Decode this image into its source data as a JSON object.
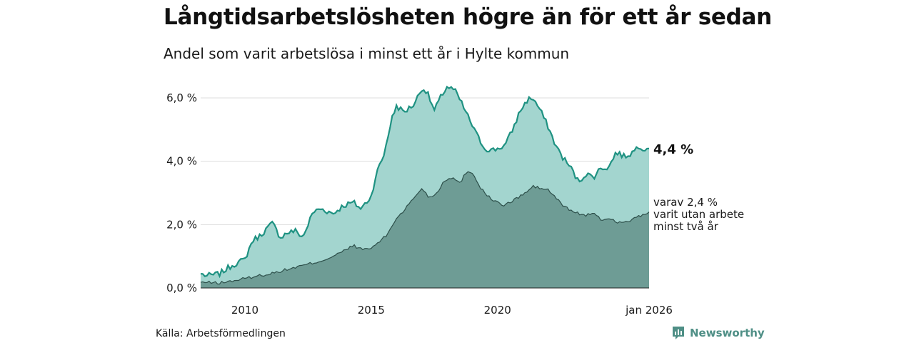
{
  "title": "Långtidsarbetslösheten högre än för ett år sedan",
  "subtitle": "Andel som varit arbetslösa i minst ett år i Hylte kommun",
  "source": "Källa: Arbetsförmedlingen",
  "brand": "Newsworthy",
  "colors": {
    "total_line": "#1f9282",
    "total_fill": "#a3d5cf",
    "sub_fill": "#6e9c95",
    "sub_line": "#2d4f4a",
    "grid": "#dddddd",
    "brand": "#4f8f86"
  },
  "chart_data": {
    "type": "area",
    "x_start": 2008.25,
    "x_end": 2026.0,
    "x_step": "month",
    "xlim": [
      2008.25,
      2026.0
    ],
    "ylim": [
      0,
      6.2
    ],
    "y_ticks": [
      0,
      2,
      4,
      6
    ],
    "y_tick_labels": [
      "0,0 %",
      "2,0 %",
      "4,0 %",
      "6,0 %"
    ],
    "x_ticks": [
      2010,
      2015,
      2020,
      2026
    ],
    "x_tick_labels": [
      "2010",
      "2015",
      "2020",
      "jan 2026"
    ],
    "grid": true,
    "series": [
      {
        "name": "Arbetslösa minst ett år",
        "label": "4,4 %",
        "keypoints": [
          [
            2008.25,
            0.45
          ],
          [
            2008.5,
            0.38
          ],
          [
            2009.0,
            0.45
          ],
          [
            2009.5,
            0.72
          ],
          [
            2010.0,
            0.9
          ],
          [
            2010.3,
            1.5
          ],
          [
            2010.6,
            1.65
          ],
          [
            2010.9,
            1.9
          ],
          [
            2011.1,
            2.05
          ],
          [
            2011.4,
            1.6
          ],
          [
            2011.7,
            1.75
          ],
          [
            2012.0,
            1.8
          ],
          [
            2012.3,
            1.6
          ],
          [
            2012.7,
            2.4
          ],
          [
            2013.0,
            2.5
          ],
          [
            2013.5,
            2.35
          ],
          [
            2013.9,
            2.6
          ],
          [
            2014.3,
            2.7
          ],
          [
            2014.6,
            2.5
          ],
          [
            2015.0,
            2.9
          ],
          [
            2015.2,
            3.6
          ],
          [
            2015.5,
            4.2
          ],
          [
            2015.8,
            5.3
          ],
          [
            2016.0,
            5.75
          ],
          [
            2016.3,
            5.55
          ],
          [
            2016.7,
            5.8
          ],
          [
            2017.0,
            6.3
          ],
          [
            2017.2,
            6.2
          ],
          [
            2017.5,
            5.6
          ],
          [
            2017.8,
            6.1
          ],
          [
            2018.0,
            6.35
          ],
          [
            2018.3,
            6.25
          ],
          [
            2018.6,
            5.8
          ],
          [
            2018.9,
            5.3
          ],
          [
            2019.2,
            4.8
          ],
          [
            2019.5,
            4.4
          ],
          [
            2019.8,
            4.35
          ],
          [
            2020.0,
            4.4
          ],
          [
            2020.3,
            4.5
          ],
          [
            2020.6,
            5.0
          ],
          [
            2020.9,
            5.6
          ],
          [
            2021.2,
            5.95
          ],
          [
            2021.4,
            6.0
          ],
          [
            2021.7,
            5.6
          ],
          [
            2022.0,
            5.1
          ],
          [
            2022.3,
            4.5
          ],
          [
            2022.6,
            4.1
          ],
          [
            2022.9,
            3.8
          ],
          [
            2023.2,
            3.35
          ],
          [
            2023.5,
            3.6
          ],
          [
            2023.8,
            3.5
          ],
          [
            2024.1,
            3.8
          ],
          [
            2024.4,
            3.8
          ],
          [
            2024.7,
            4.3
          ],
          [
            2025.0,
            4.15
          ],
          [
            2025.3,
            4.25
          ],
          [
            2025.6,
            4.5
          ],
          [
            2025.8,
            4.4
          ],
          [
            2026.0,
            4.4
          ]
        ]
      },
      {
        "name": "varav utan arbete minst två år",
        "label_lines": [
          "varav 2,4 %",
          "varit utan arbete",
          "minst två år"
        ],
        "keypoints": [
          [
            2008.25,
            0.18
          ],
          [
            2009.0,
            0.16
          ],
          [
            2009.5,
            0.22
          ],
          [
            2010.0,
            0.3
          ],
          [
            2010.5,
            0.38
          ],
          [
            2011.0,
            0.45
          ],
          [
            2011.5,
            0.55
          ],
          [
            2012.0,
            0.65
          ],
          [
            2012.5,
            0.75
          ],
          [
            2013.0,
            0.85
          ],
          [
            2013.5,
            1.0
          ],
          [
            2014.0,
            1.2
          ],
          [
            2014.3,
            1.35
          ],
          [
            2014.6,
            1.22
          ],
          [
            2015.0,
            1.25
          ],
          [
            2015.3,
            1.45
          ],
          [
            2015.6,
            1.65
          ],
          [
            2016.0,
            2.2
          ],
          [
            2016.3,
            2.45
          ],
          [
            2016.6,
            2.75
          ],
          [
            2017.0,
            3.15
          ],
          [
            2017.3,
            2.85
          ],
          [
            2017.6,
            3.0
          ],
          [
            2017.9,
            3.4
          ],
          [
            2018.2,
            3.5
          ],
          [
            2018.5,
            3.3
          ],
          [
            2018.8,
            3.7
          ],
          [
            2019.0,
            3.65
          ],
          [
            2019.3,
            3.2
          ],
          [
            2019.6,
            2.9
          ],
          [
            2019.9,
            2.75
          ],
          [
            2020.2,
            2.6
          ],
          [
            2020.5,
            2.7
          ],
          [
            2020.8,
            2.85
          ],
          [
            2021.1,
            3.0
          ],
          [
            2021.4,
            3.2
          ],
          [
            2021.7,
            3.15
          ],
          [
            2022.0,
            3.1
          ],
          [
            2022.3,
            2.85
          ],
          [
            2022.6,
            2.6
          ],
          [
            2022.9,
            2.45
          ],
          [
            2023.2,
            2.35
          ],
          [
            2023.5,
            2.3
          ],
          [
            2023.8,
            2.35
          ],
          [
            2024.1,
            2.15
          ],
          [
            2024.4,
            2.2
          ],
          [
            2024.7,
            2.1
          ],
          [
            2025.0,
            2.05
          ],
          [
            2025.3,
            2.15
          ],
          [
            2025.6,
            2.25
          ],
          [
            2026.0,
            2.4
          ]
        ]
      }
    ]
  }
}
